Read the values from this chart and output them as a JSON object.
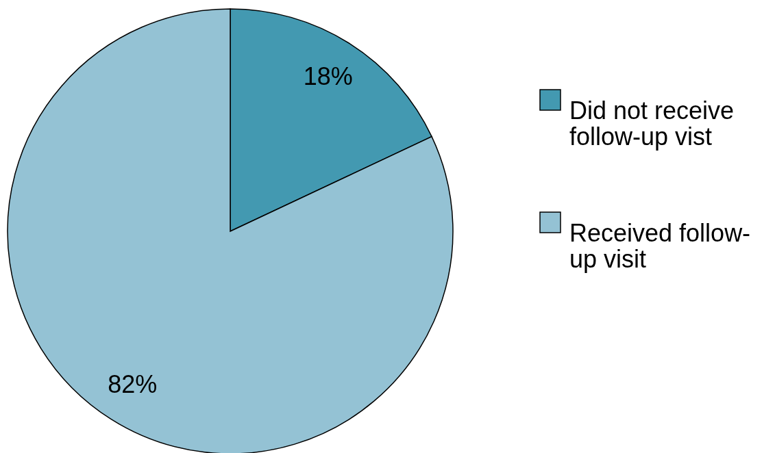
{
  "chart_data": {
    "type": "pie",
    "categories": [
      "Did not receive follow-up vist",
      "Received follow-up visit"
    ],
    "values": [
      18,
      82
    ],
    "colors": [
      "#4399b1",
      "#94c2d4"
    ],
    "value_labels": [
      "18%",
      "82%"
    ],
    "legend": "right"
  }
}
